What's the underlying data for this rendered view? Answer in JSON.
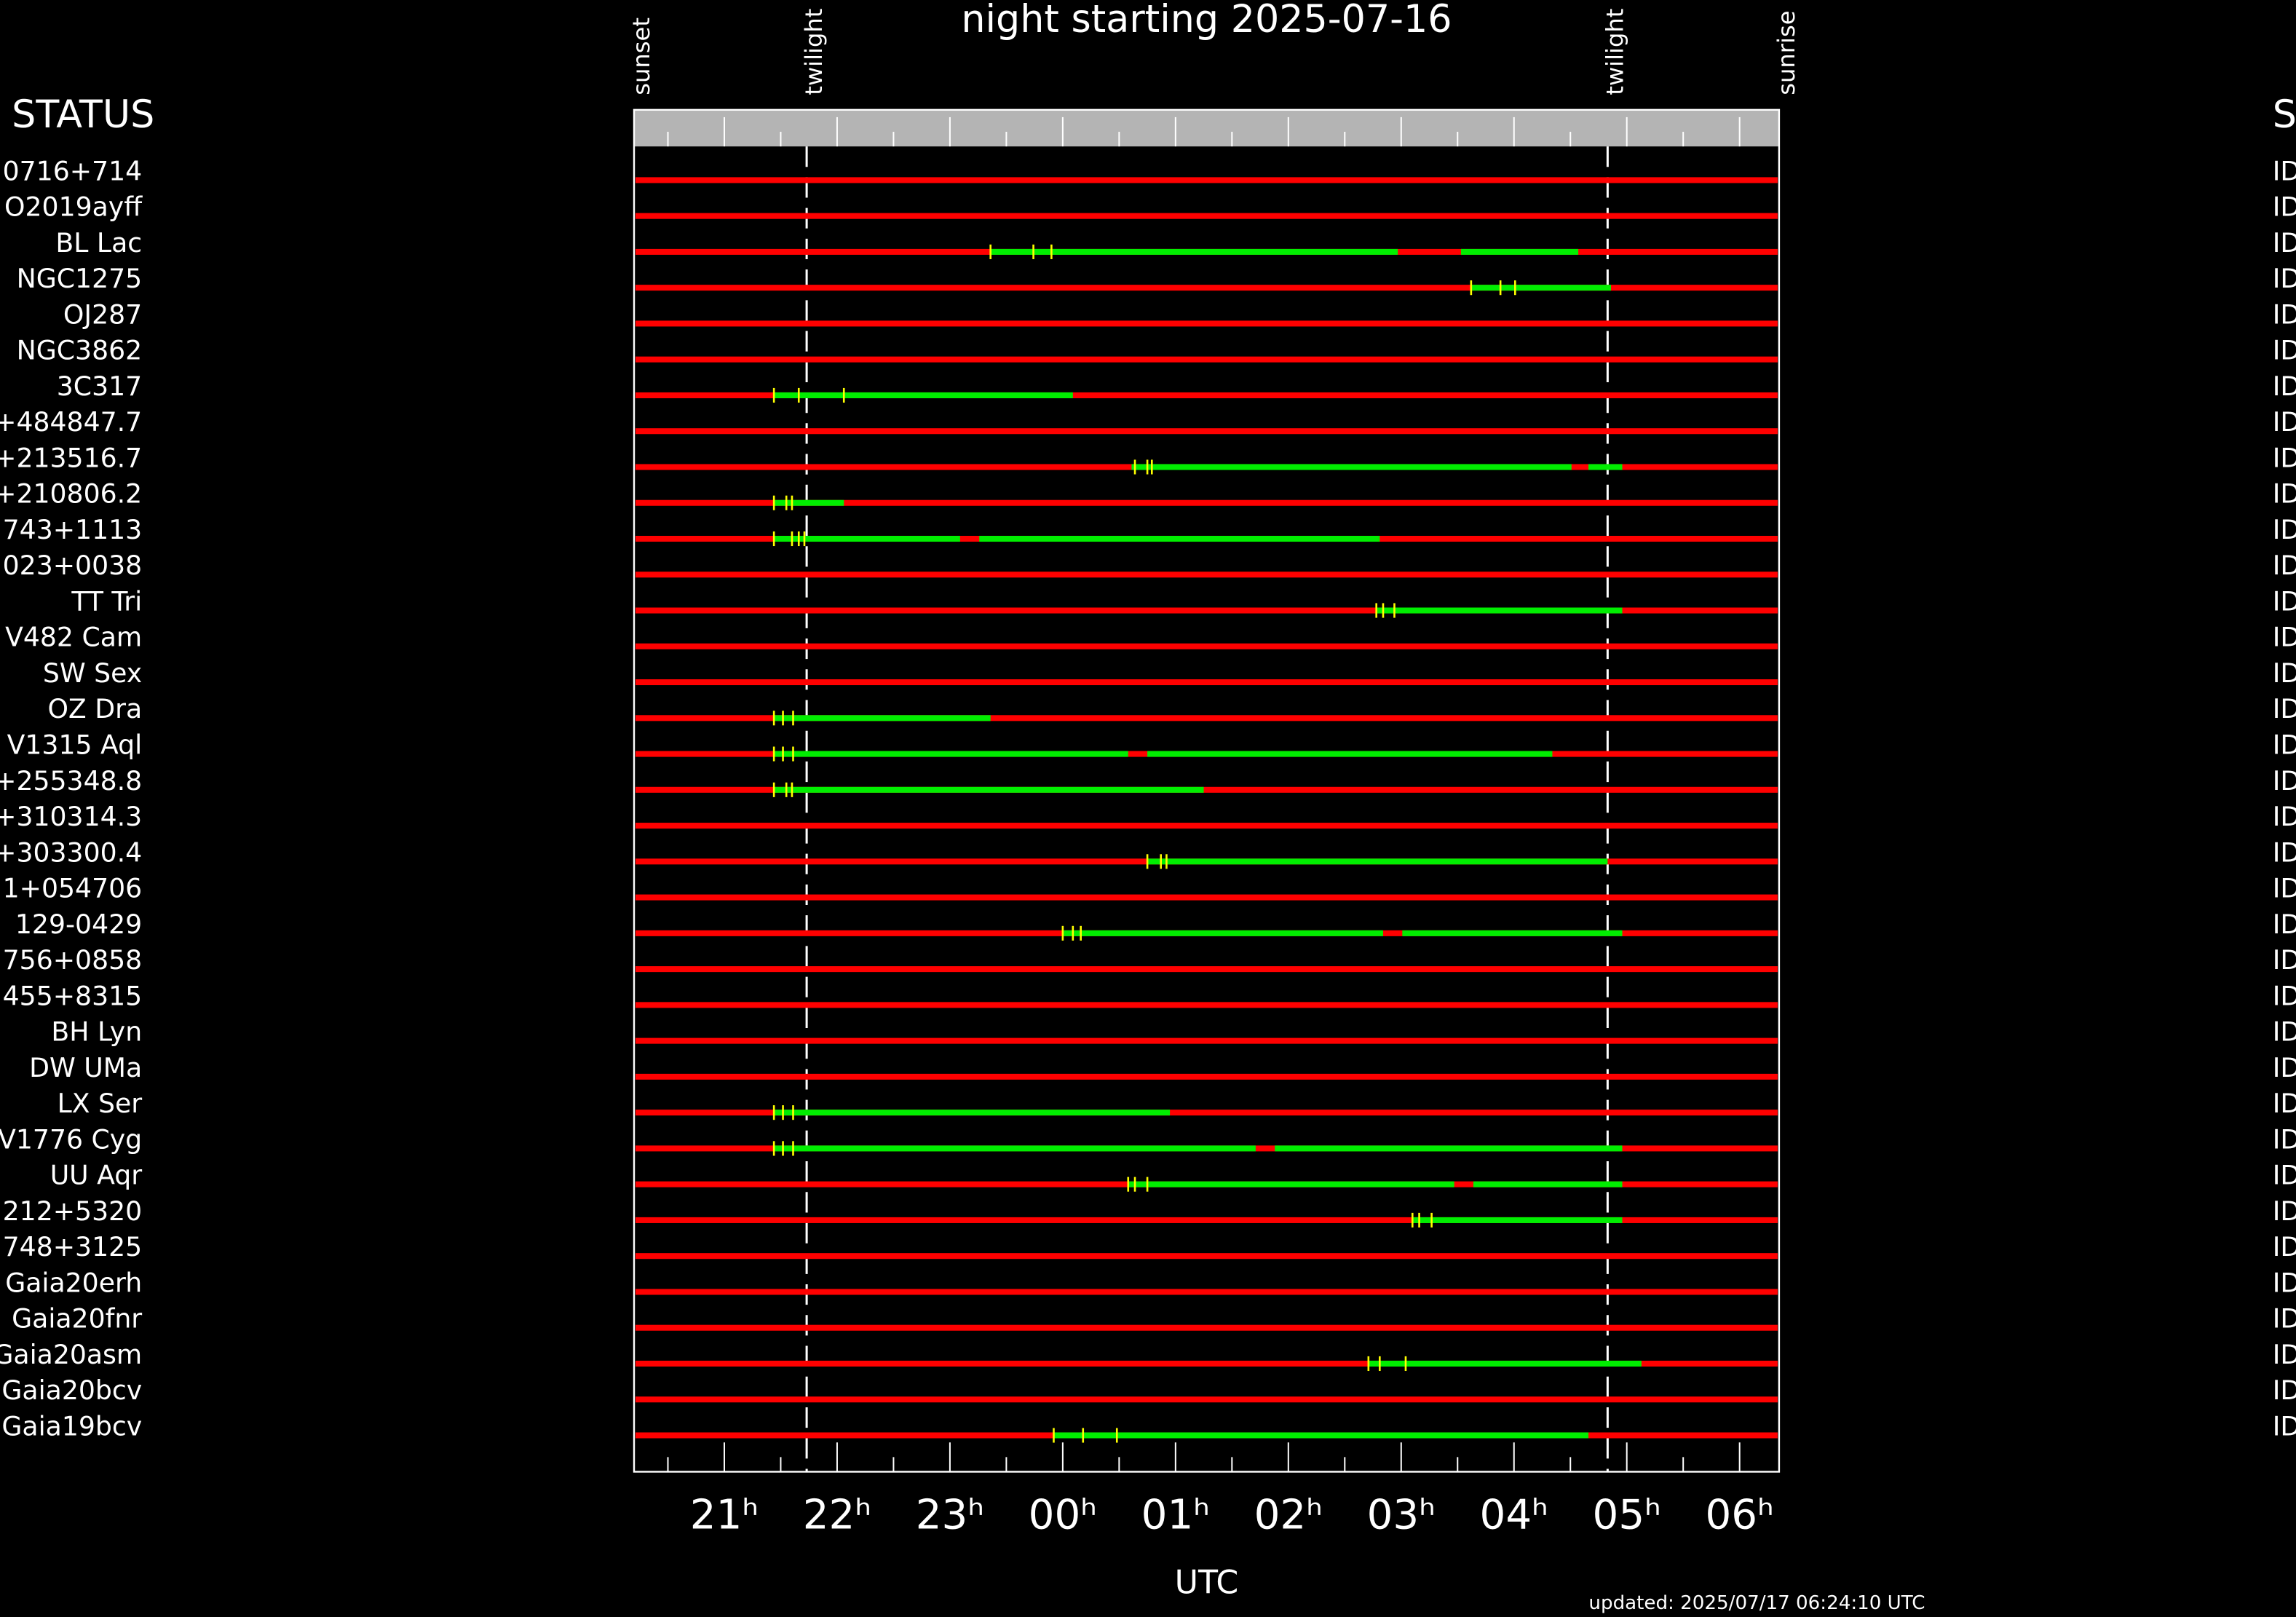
{
  "chart_data": {
    "type": "visibility",
    "title": "night starting 2025-07-16",
    "xlabel": "UTC",
    "updated": "updated: 2025/07/17 06:24:10 UTC",
    "columns": [
      "STATUS",
      "S"
    ],
    "xlim": [
      20.2,
      30.35
    ],
    "xticks": [
      {
        "value": 21,
        "label": "21ʰ"
      },
      {
        "value": 22,
        "label": "22ʰ"
      },
      {
        "value": 23,
        "label": "23ʰ"
      },
      {
        "value": 24,
        "label": "00ʰ"
      },
      {
        "value": 25,
        "label": "01ʰ"
      },
      {
        "value": 26,
        "label": "02ʰ"
      },
      {
        "value": 27,
        "label": "03ʰ"
      },
      {
        "value": 28,
        "label": "04ʰ"
      },
      {
        "value": 29,
        "label": "05ʰ"
      },
      {
        "value": 30,
        "label": "06ʰ"
      }
    ],
    "minor_xticks": [
      20.5,
      21.5,
      22.5,
      23.5,
      24.5,
      25.5,
      26.5,
      27.5,
      28.5,
      29.5
    ],
    "events": [
      {
        "label": "sunset",
        "value": 20.2,
        "line": false
      },
      {
        "label": "twilight",
        "value": 21.73,
        "line": true
      },
      {
        "label": "twilight",
        "value": 28.83,
        "line": true
      },
      {
        "label": "sunrise",
        "value": 30.35,
        "line": false
      }
    ],
    "colors": {
      "unavailable": "#ff0000",
      "observable": "#00ee00",
      "marker": "#ffff00",
      "header": "#b4b4b4"
    },
    "rows": [
      {
        "name": "0716+714",
        "status": "ID",
        "segments": [],
        "markers": []
      },
      {
        "name": "O2019ayff",
        "status": "ID",
        "segments": [],
        "markers": []
      },
      {
        "name": "BL Lac",
        "status": "ID",
        "segments": [
          [
            23.36,
            26.97
          ],
          [
            27.53,
            28.57
          ]
        ],
        "markers": [
          23.36,
          23.74,
          23.9
        ]
      },
      {
        "name": "NGC1275",
        "status": "ID",
        "segments": [
          [
            27.62,
            28.86
          ]
        ],
        "markers": [
          27.62,
          27.88,
          28.01
        ]
      },
      {
        "name": "OJ287",
        "status": "ID",
        "segments": [],
        "markers": []
      },
      {
        "name": "NGC3862",
        "status": "ID",
        "segments": [],
        "markers": []
      },
      {
        "name": "3C317",
        "status": "ID",
        "segments": [
          [
            21.44,
            24.09
          ]
        ],
        "markers": [
          21.44,
          21.66,
          22.06
        ]
      },
      {
        "name": "+484847.7",
        "status": "ID",
        "segments": [],
        "markers": []
      },
      {
        "name": "+213516.7",
        "status": "ID",
        "segments": [
          [
            24.61,
            28.51
          ],
          [
            28.66,
            28.96
          ]
        ],
        "markers": [
          24.64,
          24.75,
          24.79
        ]
      },
      {
        "name": "+210806.2",
        "status": "ID",
        "segments": [
          [
            21.44,
            22.06
          ]
        ],
        "markers": [
          21.44,
          21.55,
          21.6
        ]
      },
      {
        "name": "743+1113",
        "status": "ID",
        "segments": [
          [
            21.44,
            23.09
          ],
          [
            23.26,
            26.81
          ]
        ],
        "markers": [
          21.44,
          21.6,
          21.66,
          21.71
        ]
      },
      {
        "name": "023+0038",
        "status": "ID",
        "segments": [],
        "markers": []
      },
      {
        "name": "TT Tri",
        "status": "ID",
        "segments": [
          [
            26.78,
            28.96
          ]
        ],
        "markers": [
          26.78,
          26.84,
          26.94
        ]
      },
      {
        "name": "V482 Cam",
        "status": "ID",
        "segments": [],
        "markers": []
      },
      {
        "name": "SW Sex",
        "status": "ID",
        "segments": [],
        "markers": []
      },
      {
        "name": "OZ Dra",
        "status": "ID",
        "segments": [
          [
            21.44,
            23.36
          ]
        ],
        "markers": [
          21.44,
          21.52,
          21.61
        ]
      },
      {
        "name": "V1315 Aql",
        "status": "ID",
        "segments": [
          [
            21.44,
            24.58
          ],
          [
            24.75,
            28.34
          ]
        ],
        "markers": [
          21.44,
          21.52,
          21.61
        ]
      },
      {
        "name": "+255348.8",
        "status": "ID",
        "segments": [
          [
            21.44,
            25.25
          ]
        ],
        "markers": [
          21.44,
          21.55,
          21.6
        ]
      },
      {
        "name": "+310314.3",
        "status": "ID",
        "segments": [],
        "markers": []
      },
      {
        "name": "+303300.4",
        "status": "ID",
        "segments": [
          [
            24.75,
            28.83
          ]
        ],
        "markers": [
          24.75,
          24.87,
          24.92
        ]
      },
      {
        "name": "1+054706",
        "status": "ID",
        "segments": [],
        "markers": []
      },
      {
        "name": "129-0429",
        "status": "ID",
        "segments": [
          [
            24.0,
            26.84
          ],
          [
            27.01,
            28.96
          ]
        ],
        "markers": [
          24.0,
          24.09,
          24.16
        ]
      },
      {
        "name": "756+0858",
        "status": "ID",
        "segments": [],
        "markers": []
      },
      {
        "name": "455+8315",
        "status": "ID",
        "segments": [],
        "markers": []
      },
      {
        "name": "BH Lyn",
        "status": "ID",
        "segments": [],
        "markers": []
      },
      {
        "name": "DW UMa",
        "status": "ID",
        "segments": [],
        "markers": []
      },
      {
        "name": "LX Ser",
        "status": "ID",
        "segments": [
          [
            21.44,
            24.95
          ]
        ],
        "markers": [
          21.44,
          21.52,
          21.61
        ]
      },
      {
        "name": "V1776 Cyg",
        "status": "ID",
        "segments": [
          [
            21.44,
            25.71
          ],
          [
            25.88,
            28.96
          ]
        ],
        "markers": [
          21.44,
          21.52,
          21.61
        ]
      },
      {
        "name": "UU Aqr",
        "status": "ID",
        "segments": [
          [
            24.58,
            27.47
          ],
          [
            27.64,
            28.96
          ]
        ],
        "markers": [
          24.58,
          24.64,
          24.75
        ]
      },
      {
        "name": "212+5320",
        "status": "ID",
        "segments": [
          [
            27.1,
            28.96
          ]
        ],
        "markers": [
          27.1,
          27.16,
          27.27
        ]
      },
      {
        "name": "748+3125",
        "status": "ID",
        "segments": [],
        "markers": []
      },
      {
        "name": "Gaia20erh",
        "status": "ID",
        "segments": [],
        "markers": []
      },
      {
        "name": "Gaia20fnr",
        "status": "ID",
        "segments": [],
        "markers": []
      },
      {
        "name": "Gaia20asm",
        "status": "ID",
        "segments": [
          [
            26.71,
            29.13
          ]
        ],
        "markers": [
          26.71,
          26.81,
          27.04
        ]
      },
      {
        "name": "Gaia20bcv",
        "status": "ID",
        "segments": [],
        "markers": []
      },
      {
        "name": "Gaia19bcv",
        "status": "ID",
        "segments": [
          [
            23.92,
            28.66
          ]
        ],
        "markers": [
          23.92,
          24.18,
          24.48
        ]
      }
    ]
  }
}
